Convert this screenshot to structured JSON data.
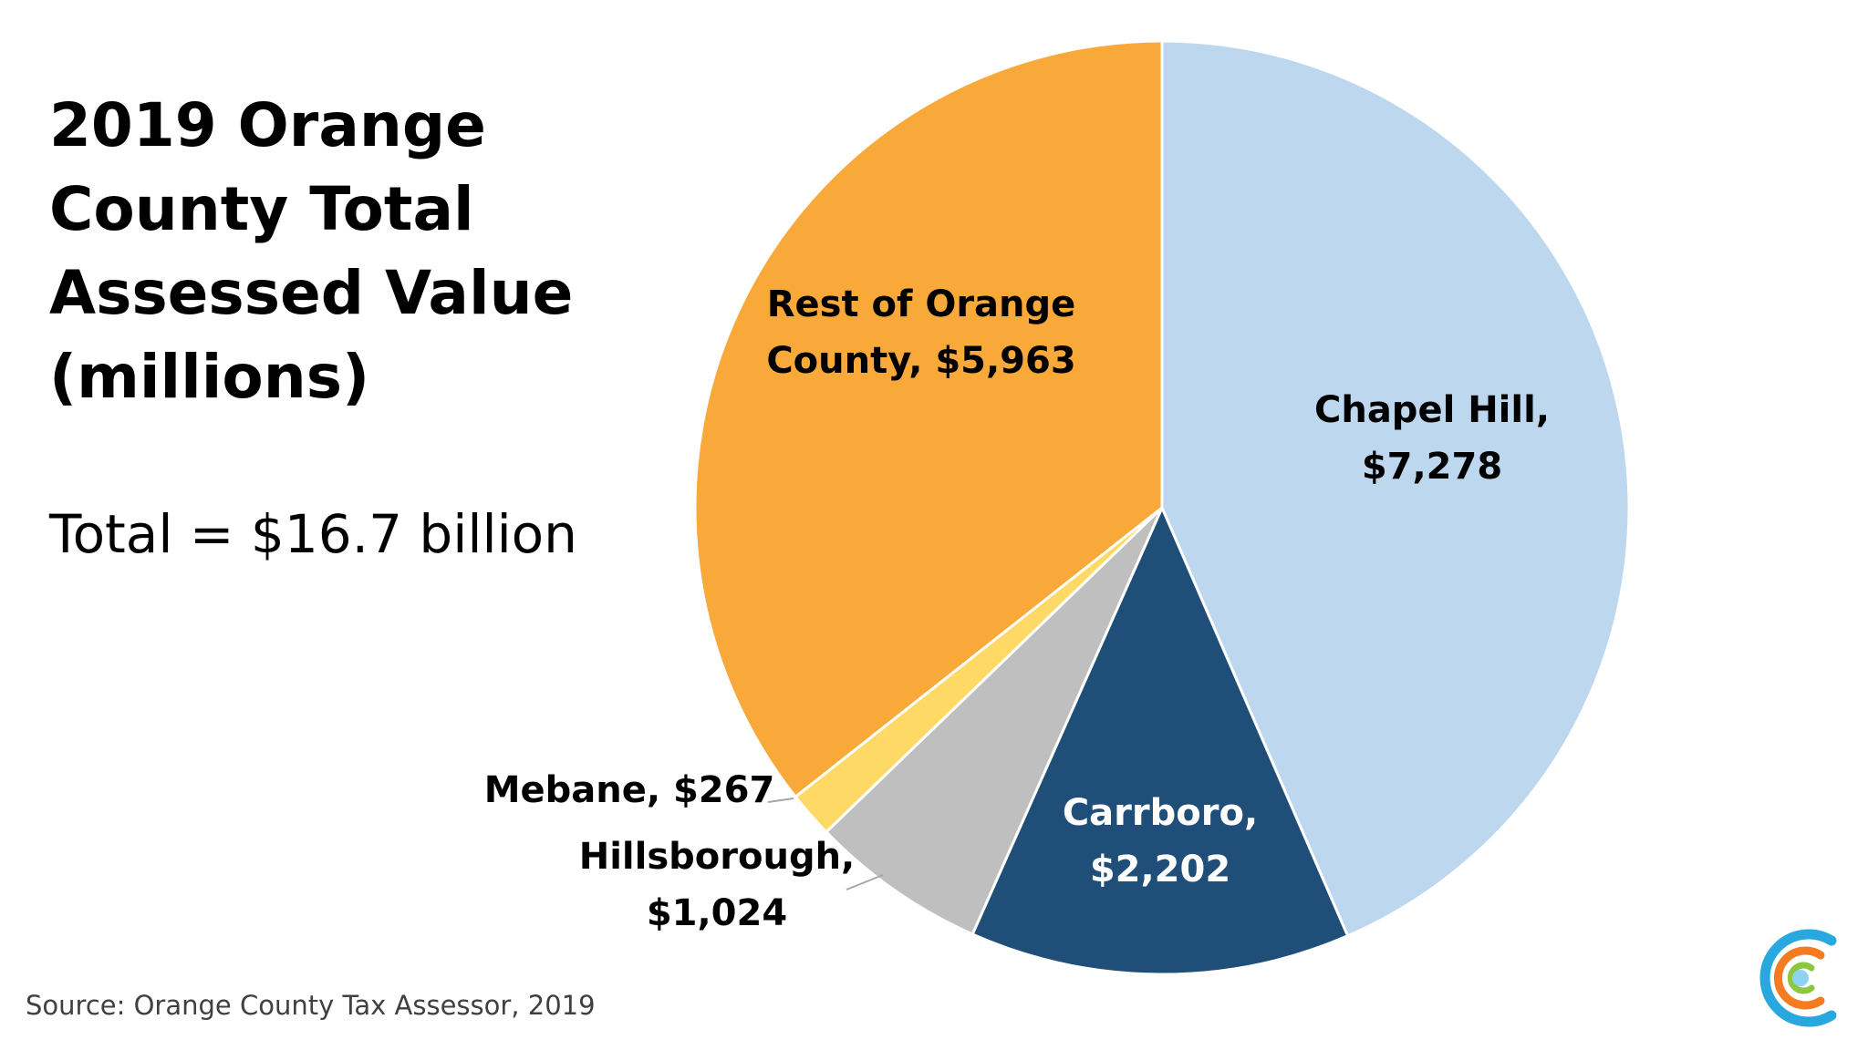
{
  "title_lines": [
    "2019 Orange",
    "County Total",
    "Assessed Value",
    "(millions)"
  ],
  "total_text": "Total = $16.7 billion",
  "source_text": "Source: Orange County Tax Assessor, 2019",
  "logo_icon": "concentric-c-logo-icon",
  "chart_data": {
    "type": "pie",
    "title": "2019 Orange County Total Assessed Value (millions)",
    "unit": "millions",
    "slices": [
      {
        "label": "Chapel Hill",
        "value": 7278,
        "display": [
          "Chapel Hill,",
          "$7,278"
        ],
        "color": "#bdd7ee"
      },
      {
        "label": "Carrboro",
        "value": 2202,
        "display": [
          "Carrboro,",
          "$2,202"
        ],
        "color": "#1f4e79"
      },
      {
        "label": "Hillsborough",
        "value": 1024,
        "display": [
          "Hillsborough,",
          "$1,024"
        ],
        "color": "#bfbfbf"
      },
      {
        "label": "Mebane",
        "value": 267,
        "display": [
          "Mebane, $267"
        ],
        "color": "#ffd966"
      },
      {
        "label": "Rest of Orange County",
        "value": 5963,
        "display": [
          "Rest of Orange",
          "County, $5,963"
        ],
        "color": "#f8a93a"
      }
    ]
  }
}
